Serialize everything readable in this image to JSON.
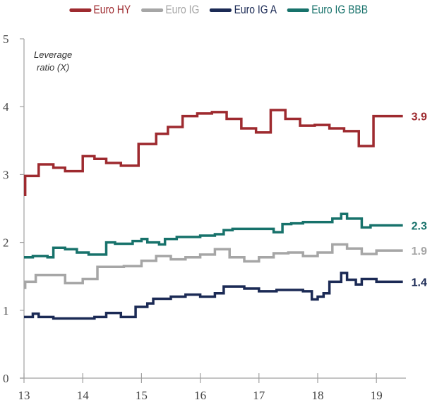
{
  "chart_data": {
    "type": "line",
    "step": true,
    "title": "",
    "ylabel": "Leverage ratio (X)",
    "ylabel_lines": [
      "Leverage",
      "ratio (X)"
    ],
    "xlabel": "",
    "xlim": [
      13,
      19.5
    ],
    "ylim": [
      0,
      5
    ],
    "x_ticks": [
      13,
      14,
      15,
      16,
      17,
      18,
      19
    ],
    "x_tick_labels": [
      "13",
      "14",
      "15",
      "16",
      "17",
      "18",
      "19"
    ],
    "y_ticks": [
      0,
      1,
      2,
      3,
      4,
      5
    ],
    "y_tick_labels": [
      "0",
      "1",
      "2",
      "3",
      "4",
      "5"
    ],
    "grid": false,
    "legend_position": "top-center",
    "series": [
      {
        "name": "Euro HY",
        "color": "#9e2a2f",
        "end_label": "3.9",
        "x": [
          13.0,
          13.02,
          13.25,
          13.5,
          13.7,
          14.0,
          14.2,
          14.4,
          14.65,
          14.95,
          15.25,
          15.45,
          15.7,
          15.95,
          16.2,
          16.45,
          16.7,
          16.95,
          17.2,
          17.45,
          17.7,
          17.95,
          18.2,
          18.45,
          18.7,
          18.95
        ],
        "values": [
          2.7,
          2.98,
          3.15,
          3.1,
          3.05,
          3.27,
          3.23,
          3.17,
          3.13,
          3.45,
          3.6,
          3.7,
          3.86,
          3.9,
          3.92,
          3.82,
          3.68,
          3.62,
          3.95,
          3.82,
          3.72,
          3.73,
          3.68,
          3.64,
          3.42,
          3.86
        ],
        "x_end": 19.45
      },
      {
        "name": "Euro IG",
        "color": "#a6a6a6",
        "end_label": "1.9",
        "x": [
          13.0,
          13.02,
          13.2,
          13.7,
          14.0,
          14.25,
          14.7,
          15.0,
          15.25,
          15.5,
          15.75,
          16.0,
          16.25,
          16.5,
          16.75,
          17.0,
          17.25,
          17.5,
          17.75,
          18.0,
          18.25,
          18.5,
          18.75,
          19.0
        ],
        "values": [
          1.33,
          1.42,
          1.52,
          1.4,
          1.46,
          1.64,
          1.65,
          1.73,
          1.8,
          1.75,
          1.78,
          1.82,
          1.9,
          1.78,
          1.72,
          1.78,
          1.84,
          1.85,
          1.8,
          1.85,
          1.97,
          1.91,
          1.83,
          1.88
        ],
        "x_end": 19.45
      },
      {
        "name": "Euro IG A",
        "color": "#1b2a55",
        "end_label": "1.4",
        "x": [
          13.0,
          13.15,
          13.25,
          13.5,
          14.2,
          14.4,
          14.65,
          14.9,
          15.1,
          15.2,
          15.5,
          15.75,
          16.0,
          16.25,
          16.4,
          16.75,
          17.0,
          17.3,
          17.75,
          17.9,
          18.0,
          18.1,
          18.2,
          18.4,
          18.5,
          18.65,
          18.75,
          19.0
        ],
        "values": [
          0.9,
          0.95,
          0.9,
          0.88,
          0.9,
          0.96,
          0.9,
          1.05,
          1.1,
          1.17,
          1.2,
          1.23,
          1.2,
          1.25,
          1.35,
          1.32,
          1.28,
          1.3,
          1.28,
          1.16,
          1.2,
          1.25,
          1.42,
          1.55,
          1.45,
          1.38,
          1.46,
          1.42
        ],
        "x_end": 19.45
      },
      {
        "name": "Euro IG BBB",
        "color": "#17726b",
        "end_label": "2.3",
        "x": [
          13.0,
          13.15,
          13.4,
          13.5,
          13.7,
          13.9,
          14.1,
          14.4,
          14.55,
          14.85,
          15.0,
          15.1,
          15.3,
          15.4,
          15.6,
          16.0,
          16.25,
          16.4,
          16.55,
          17.25,
          17.4,
          17.55,
          17.75,
          18.1,
          18.25,
          18.4,
          18.5,
          18.75,
          18.9
        ],
        "values": [
          1.78,
          1.8,
          1.78,
          1.92,
          1.9,
          1.85,
          1.82,
          2.0,
          1.98,
          2.02,
          2.05,
          2.0,
          1.97,
          2.05,
          2.08,
          2.1,
          2.12,
          2.18,
          2.2,
          2.15,
          2.27,
          2.28,
          2.3,
          2.3,
          2.35,
          2.42,
          2.35,
          2.22,
          2.25
        ],
        "x_end": 19.45
      }
    ]
  }
}
